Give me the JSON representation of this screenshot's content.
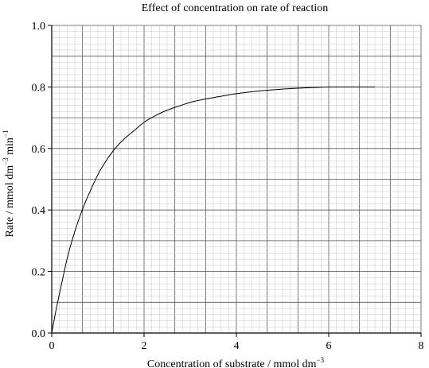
{
  "chart_data": {
    "type": "line",
    "title": "Effect of concentration on rate of reaction",
    "xlabel": {
      "base": "Concentration of substrate / mmol dm",
      "exponent": "−3"
    },
    "ylabel": {
      "part1": "Rate / mmol dm",
      "exp1": "−3",
      "part2": " min",
      "exp2": "−1"
    },
    "xlim": [
      0,
      8
    ],
    "ylim": [
      0,
      1.0
    ],
    "x_ticks": [
      0,
      2,
      4,
      6,
      8
    ],
    "x_tick_labels": [
      "0",
      "2",
      "4",
      "6",
      "8"
    ],
    "y_ticks": [
      0,
      0.2,
      0.4,
      0.6,
      0.8,
      1.0
    ],
    "y_tick_labels": [
      "0.0",
      "0.2",
      "0.4",
      "0.6",
      "0.8",
      "1.0"
    ],
    "grid": true,
    "series": [
      {
        "x": [
          0,
          0.1,
          0.2,
          0.3,
          0.4,
          0.5,
          0.6,
          0.7,
          0.8,
          1.0,
          1.2,
          1.4,
          1.6,
          1.8,
          2.0,
          2.2,
          2.4,
          2.6,
          2.8,
          3.0,
          3.3,
          3.6,
          4.0,
          4.5,
          5.0,
          5.5,
          6.0,
          6.5,
          7.0
        ],
        "y": [
          0,
          0.08,
          0.15,
          0.22,
          0.28,
          0.33,
          0.375,
          0.415,
          0.45,
          0.515,
          0.565,
          0.605,
          0.635,
          0.66,
          0.685,
          0.703,
          0.718,
          0.73,
          0.74,
          0.75,
          0.76,
          0.768,
          0.778,
          0.787,
          0.793,
          0.797,
          0.8,
          0.8,
          0.8
        ]
      }
    ]
  }
}
